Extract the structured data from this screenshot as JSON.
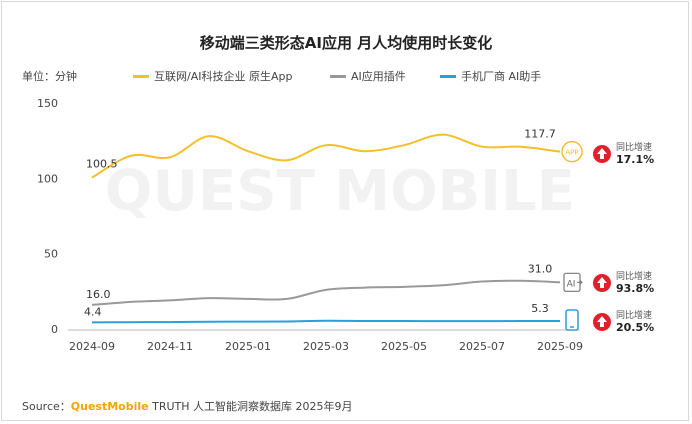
{
  "title": "移动端三类形态AI应用 月人均使用时长变化",
  "unit_label": "单位：分钟",
  "source": {
    "prefix": "Source：",
    "brand": "QuestMobile",
    "suffix": " TRUTH 人工智能洞察数据库 2025年9月"
  },
  "watermark": "QUEST MOBILE",
  "growth_label": "同比增速",
  "colors": {
    "series1": "#f5bf2c",
    "series2": "#999999",
    "series3": "#2b9fd9",
    "growth_arrow": "#e0202a"
  },
  "chart_data": {
    "type": "line",
    "title": "移动端三类形态AI应用 月人均使用时长变化",
    "ylabel": "单位：分钟",
    "ylim": [
      0,
      150
    ],
    "yticks": [
      0,
      50,
      100,
      150
    ],
    "x": [
      "2024-09",
      "2024-10",
      "2024-11",
      "2024-12",
      "2025-01",
      "2025-02",
      "2025-03",
      "2025-04",
      "2025-05",
      "2025-06",
      "2025-07",
      "2025-08",
      "2025-09"
    ],
    "xtick_labels": [
      "2024-09",
      "2024-11",
      "2025-01",
      "2025-03",
      "2025-05",
      "2025-07",
      "2025-09"
    ],
    "grid": false,
    "legend_position": "top",
    "series": [
      {
        "name": "互联网/AI科技企业 原生App",
        "values": [
          100.5,
          115,
          114,
          128,
          118,
          112,
          122,
          118,
          122,
          129,
          121,
          121,
          117.7
        ],
        "start_label": "100.5",
        "end_label": "117.7",
        "growth": "17.1%",
        "end_icon": "app-icon"
      },
      {
        "name": "AI应用插件",
        "values": [
          16.0,
          18,
          19,
          20.5,
          20,
          20,
          26,
          27.5,
          28,
          29,
          31.5,
          32,
          31.0
        ],
        "start_label": "16.0",
        "end_label": "31.0",
        "growth": "93.8%",
        "end_icon": "ai-plugin-icon"
      },
      {
        "name": "手机厂商 AI助手",
        "values": [
          4.4,
          4.5,
          4.6,
          4.8,
          4.9,
          5.0,
          5.5,
          5.3,
          5.3,
          5.2,
          5.2,
          5.3,
          5.3
        ],
        "start_label": "4.4",
        "end_label": "5.3",
        "growth": "20.5%",
        "end_icon": "phone-icon"
      }
    ]
  }
}
